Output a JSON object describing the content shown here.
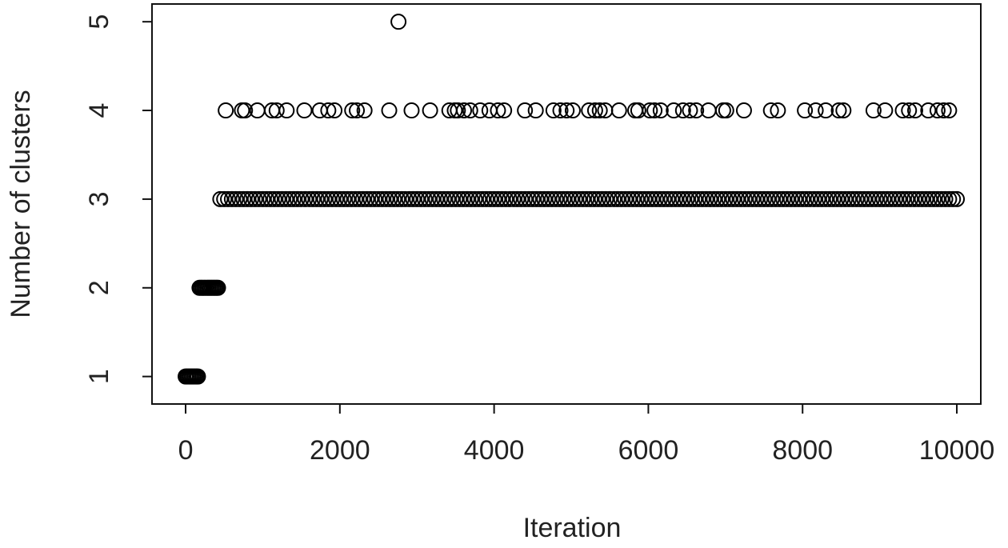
{
  "chart_data": {
    "type": "scatter",
    "x_label": "Iteration",
    "y_label": "Number of clusters",
    "xlim": [
      -436,
      10311
    ],
    "ylim": [
      0.69,
      5.2
    ],
    "xticks": [
      0,
      2000,
      4000,
      6000,
      8000,
      10000
    ],
    "yticks": [
      1,
      2,
      3,
      4,
      5
    ],
    "color": "#000000",
    "x": [
      0,
      20,
      40,
      60,
      80,
      100,
      120,
      140,
      160,
      180,
      200,
      220,
      240,
      260,
      280,
      300,
      320,
      340,
      360,
      380,
      400,
      420,
      450,
      500,
      550,
      600,
      650,
      700,
      750,
      800,
      850,
      900,
      950,
      1000,
      1050,
      1100,
      1150,
      1200,
      1250,
      1300,
      1350,
      1400,
      1450,
      1500,
      1550,
      1600,
      1650,
      1700,
      1750,
      1800,
      1850,
      1900,
      1950,
      2000,
      2050,
      2100,
      2150,
      2200,
      2250,
      2300,
      2350,
      2400,
      2450,
      2500,
      2550,
      2600,
      2650,
      2700,
      2750,
      2800,
      2850,
      2900,
      2950,
      3000,
      3050,
      3100,
      3150,
      3200,
      3250,
      3300,
      3350,
      3400,
      3450,
      3500,
      3550,
      3600,
      3650,
      3700,
      3750,
      3800,
      3850,
      3900,
      3950,
      4000,
      4050,
      4100,
      4150,
      4200,
      4250,
      4300,
      4350,
      4400,
      4450,
      4500,
      4550,
      4600,
      4650,
      4700,
      4750,
      4800,
      4850,
      4900,
      4950,
      5000,
      5050,
      5100,
      5150,
      5200,
      5250,
      5300,
      5350,
      5400,
      5450,
      5500,
      5550,
      5600,
      5650,
      5700,
      5750,
      5800,
      5850,
      5900,
      5950,
      6000,
      6050,
      6100,
      6150,
      6200,
      6250,
      6300,
      6350,
      6400,
      6450,
      6500,
      6550,
      6600,
      6650,
      6700,
      6750,
      6800,
      6850,
      6900,
      6950,
      7000,
      7050,
      7100,
      7150,
      7200,
      7250,
      7300,
      7350,
      7400,
      7450,
      7500,
      7550,
      7600,
      7650,
      7700,
      7750,
      7800,
      7850,
      7900,
      7950,
      8000,
      8050,
      8100,
      8150,
      8200,
      8250,
      8300,
      8350,
      8400,
      8450,
      8500,
      8550,
      8600,
      8650,
      8700,
      8750,
      8800,
      8850,
      8900,
      8950,
      9000,
      9050,
      9100,
      9150,
      9200,
      9250,
      9300,
      9350,
      9400,
      9450,
      9500,
      9550,
      9600,
      9650,
      9700,
      9750,
      9800,
      9850,
      9900,
      9950,
      10000,
      520,
      730,
      770,
      930,
      1120,
      1180,
      1310,
      1540,
      1740,
      1850,
      1930,
      2160,
      2220,
      2320,
      2640,
      2930,
      3170,
      3420,
      3490,
      3530,
      3610,
      3690,
      3820,
      3940,
      4050,
      4130,
      4400,
      4540,
      4770,
      4860,
      4940,
      5020,
      5230,
      5310,
      5370,
      5440,
      5620,
      5830,
      5870,
      6020,
      6080,
      6160,
      6330,
      6450,
      6540,
      6620,
      6780,
      6970,
      7010,
      7240,
      7590,
      7680,
      8030,
      8170,
      8300,
      8470,
      8530,
      8920,
      9070,
      9300,
      9380,
      9460,
      9630,
      9750,
      9830,
      9900,
      2760
    ],
    "y": [
      1,
      1,
      1,
      1,
      1,
      1,
      1,
      1,
      1,
      2,
      2,
      2,
      2,
      2,
      2,
      2,
      2,
      2,
      2,
      2,
      2,
      2,
      3,
      3,
      3,
      3,
      3,
      3,
      3,
      3,
      3,
      3,
      3,
      3,
      3,
      3,
      3,
      3,
      3,
      3,
      3,
      3,
      3,
      3,
      3,
      3,
      3,
      3,
      3,
      3,
      3,
      3,
      3,
      3,
      3,
      3,
      3,
      3,
      3,
      3,
      3,
      3,
      3,
      3,
      3,
      3,
      3,
      3,
      3,
      3,
      3,
      3,
      3,
      3,
      3,
      3,
      3,
      3,
      3,
      3,
      3,
      3,
      3,
      3,
      3,
      3,
      3,
      3,
      3,
      3,
      3,
      3,
      3,
      3,
      3,
      3,
      3,
      3,
      3,
      3,
      3,
      3,
      3,
      3,
      3,
      3,
      3,
      3,
      3,
      3,
      3,
      3,
      3,
      3,
      3,
      3,
      3,
      3,
      3,
      3,
      3,
      3,
      3,
      3,
      3,
      3,
      3,
      3,
      3,
      3,
      3,
      3,
      3,
      3,
      3,
      3,
      3,
      3,
      3,
      3,
      3,
      3,
      3,
      3,
      3,
      3,
      3,
      3,
      3,
      3,
      3,
      3,
      3,
      3,
      3,
      3,
      3,
      3,
      3,
      3,
      3,
      3,
      3,
      3,
      3,
      3,
      3,
      3,
      3,
      3,
      3,
      3,
      3,
      3,
      3,
      3,
      3,
      3,
      3,
      3,
      3,
      3,
      3,
      3,
      3,
      3,
      3,
      3,
      3,
      3,
      3,
      3,
      3,
      3,
      3,
      3,
      3,
      3,
      3,
      3,
      3,
      3,
      3,
      3,
      3,
      3,
      3,
      3,
      3,
      3,
      3,
      3,
      3,
      3,
      4,
      4,
      4,
      4,
      4,
      4,
      4,
      4,
      4,
      4,
      4,
      4,
      4,
      4,
      4,
      4,
      4,
      4,
      4,
      4,
      4,
      4,
      4,
      4,
      4,
      4,
      4,
      4,
      4,
      4,
      4,
      4,
      4,
      4,
      4,
      4,
      4,
      4,
      4,
      4,
      4,
      4,
      4,
      4,
      4,
      4,
      4,
      4,
      4,
      4,
      4,
      4,
      4,
      4,
      4,
      4,
      4,
      4,
      4,
      4,
      4,
      4,
      4,
      4,
      4,
      4,
      5
    ]
  }
}
